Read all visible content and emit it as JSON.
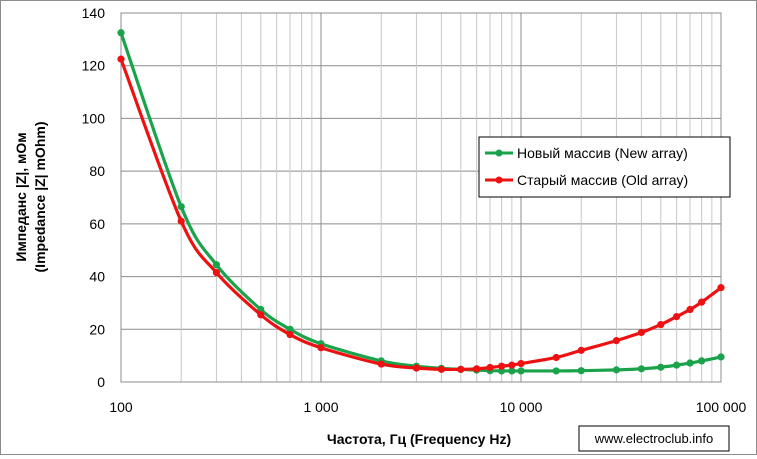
{
  "chart_data": {
    "type": "line",
    "xscale": "log",
    "xlim": [
      100,
      100000
    ],
    "ylim": [
      0,
      140
    ],
    "y_ticks": [
      0,
      20,
      40,
      60,
      80,
      100,
      120,
      140
    ],
    "y_tick_labels": [
      "0",
      "20",
      "40",
      "60",
      "80",
      "100",
      "120",
      "140"
    ],
    "x_ticks": [
      100,
      1000,
      10000,
      100000
    ],
    "x_tick_labels": [
      "100",
      "1 000",
      "10 000",
      "100 000"
    ],
    "xlabel": "Частота, Гц (Frequency Hz)",
    "ylabel_line1": "Импеданс |Z|, мОм",
    "ylabel_line2": "(Impedance |Z| mOhm)",
    "grid": true,
    "legend_position": "right",
    "series": [
      {
        "name": "Новый массив (New array)",
        "color": "#1aa34a",
        "x": [
          100,
          200,
          300,
          500,
          700,
          1000,
          2000,
          3000,
          4000,
          5000,
          6000,
          7000,
          8000,
          9000,
          10000,
          15000,
          20000,
          30000,
          40000,
          50000,
          60000,
          70000,
          80000,
          100000
        ],
        "y": [
          132.5,
          66.5,
          44.5,
          27.5,
          20.0,
          14.5,
          8.0,
          6.0,
          5.2,
          4.8,
          4.5,
          4.3,
          4.2,
          4.2,
          4.2,
          4.2,
          4.3,
          4.6,
          5.0,
          5.6,
          6.4,
          7.2,
          8.0,
          9.5
        ]
      },
      {
        "name": "Старый массив (Old array)",
        "color": "#ee1111",
        "x": [
          100,
          200,
          300,
          500,
          700,
          1000,
          2000,
          3000,
          4000,
          5000,
          6000,
          7000,
          8000,
          9000,
          10000,
          15000,
          20000,
          30000,
          40000,
          50000,
          60000,
          70000,
          80000,
          100000
        ],
        "y": [
          122.5,
          61.0,
          41.5,
          25.5,
          18.0,
          13.0,
          6.8,
          5.3,
          4.8,
          4.8,
          5.0,
          5.5,
          6.0,
          6.4,
          7.0,
          9.3,
          12.0,
          15.7,
          18.8,
          21.8,
          24.8,
          27.5,
          30.3,
          35.8
        ]
      }
    ]
  },
  "watermark": "www.electroclub.info"
}
